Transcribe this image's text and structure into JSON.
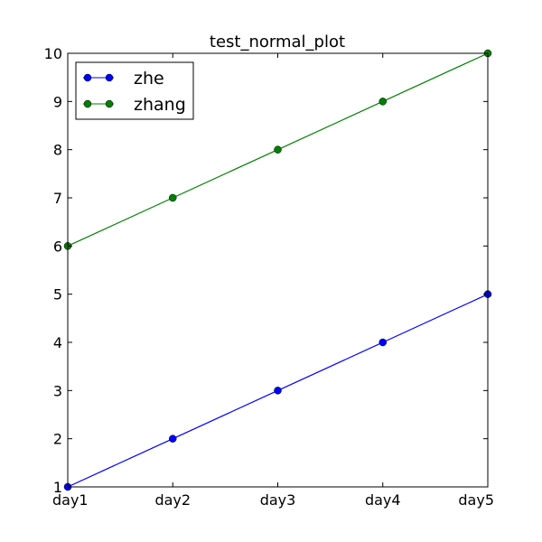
{
  "chart_data": {
    "type": "line",
    "title": "test_normal_plot",
    "xlabel": "",
    "ylabel": "",
    "categories": [
      "day1",
      "day2",
      "day3",
      "day4",
      "day5"
    ],
    "ylim": [
      1,
      10
    ],
    "yticks": [
      "1",
      "2",
      "3",
      "4",
      "5",
      "6",
      "7",
      "8",
      "9",
      "10"
    ],
    "grid": false,
    "legend_position": "top-left",
    "series": [
      {
        "name": "zhe",
        "values": [
          1,
          2,
          3,
          4,
          5
        ],
        "color": "#0000ff",
        "marker": "circle"
      },
      {
        "name": "zhang",
        "values": [
          6,
          7,
          8,
          9,
          10
        ],
        "color": "#008000",
        "marker": "circle"
      }
    ]
  }
}
